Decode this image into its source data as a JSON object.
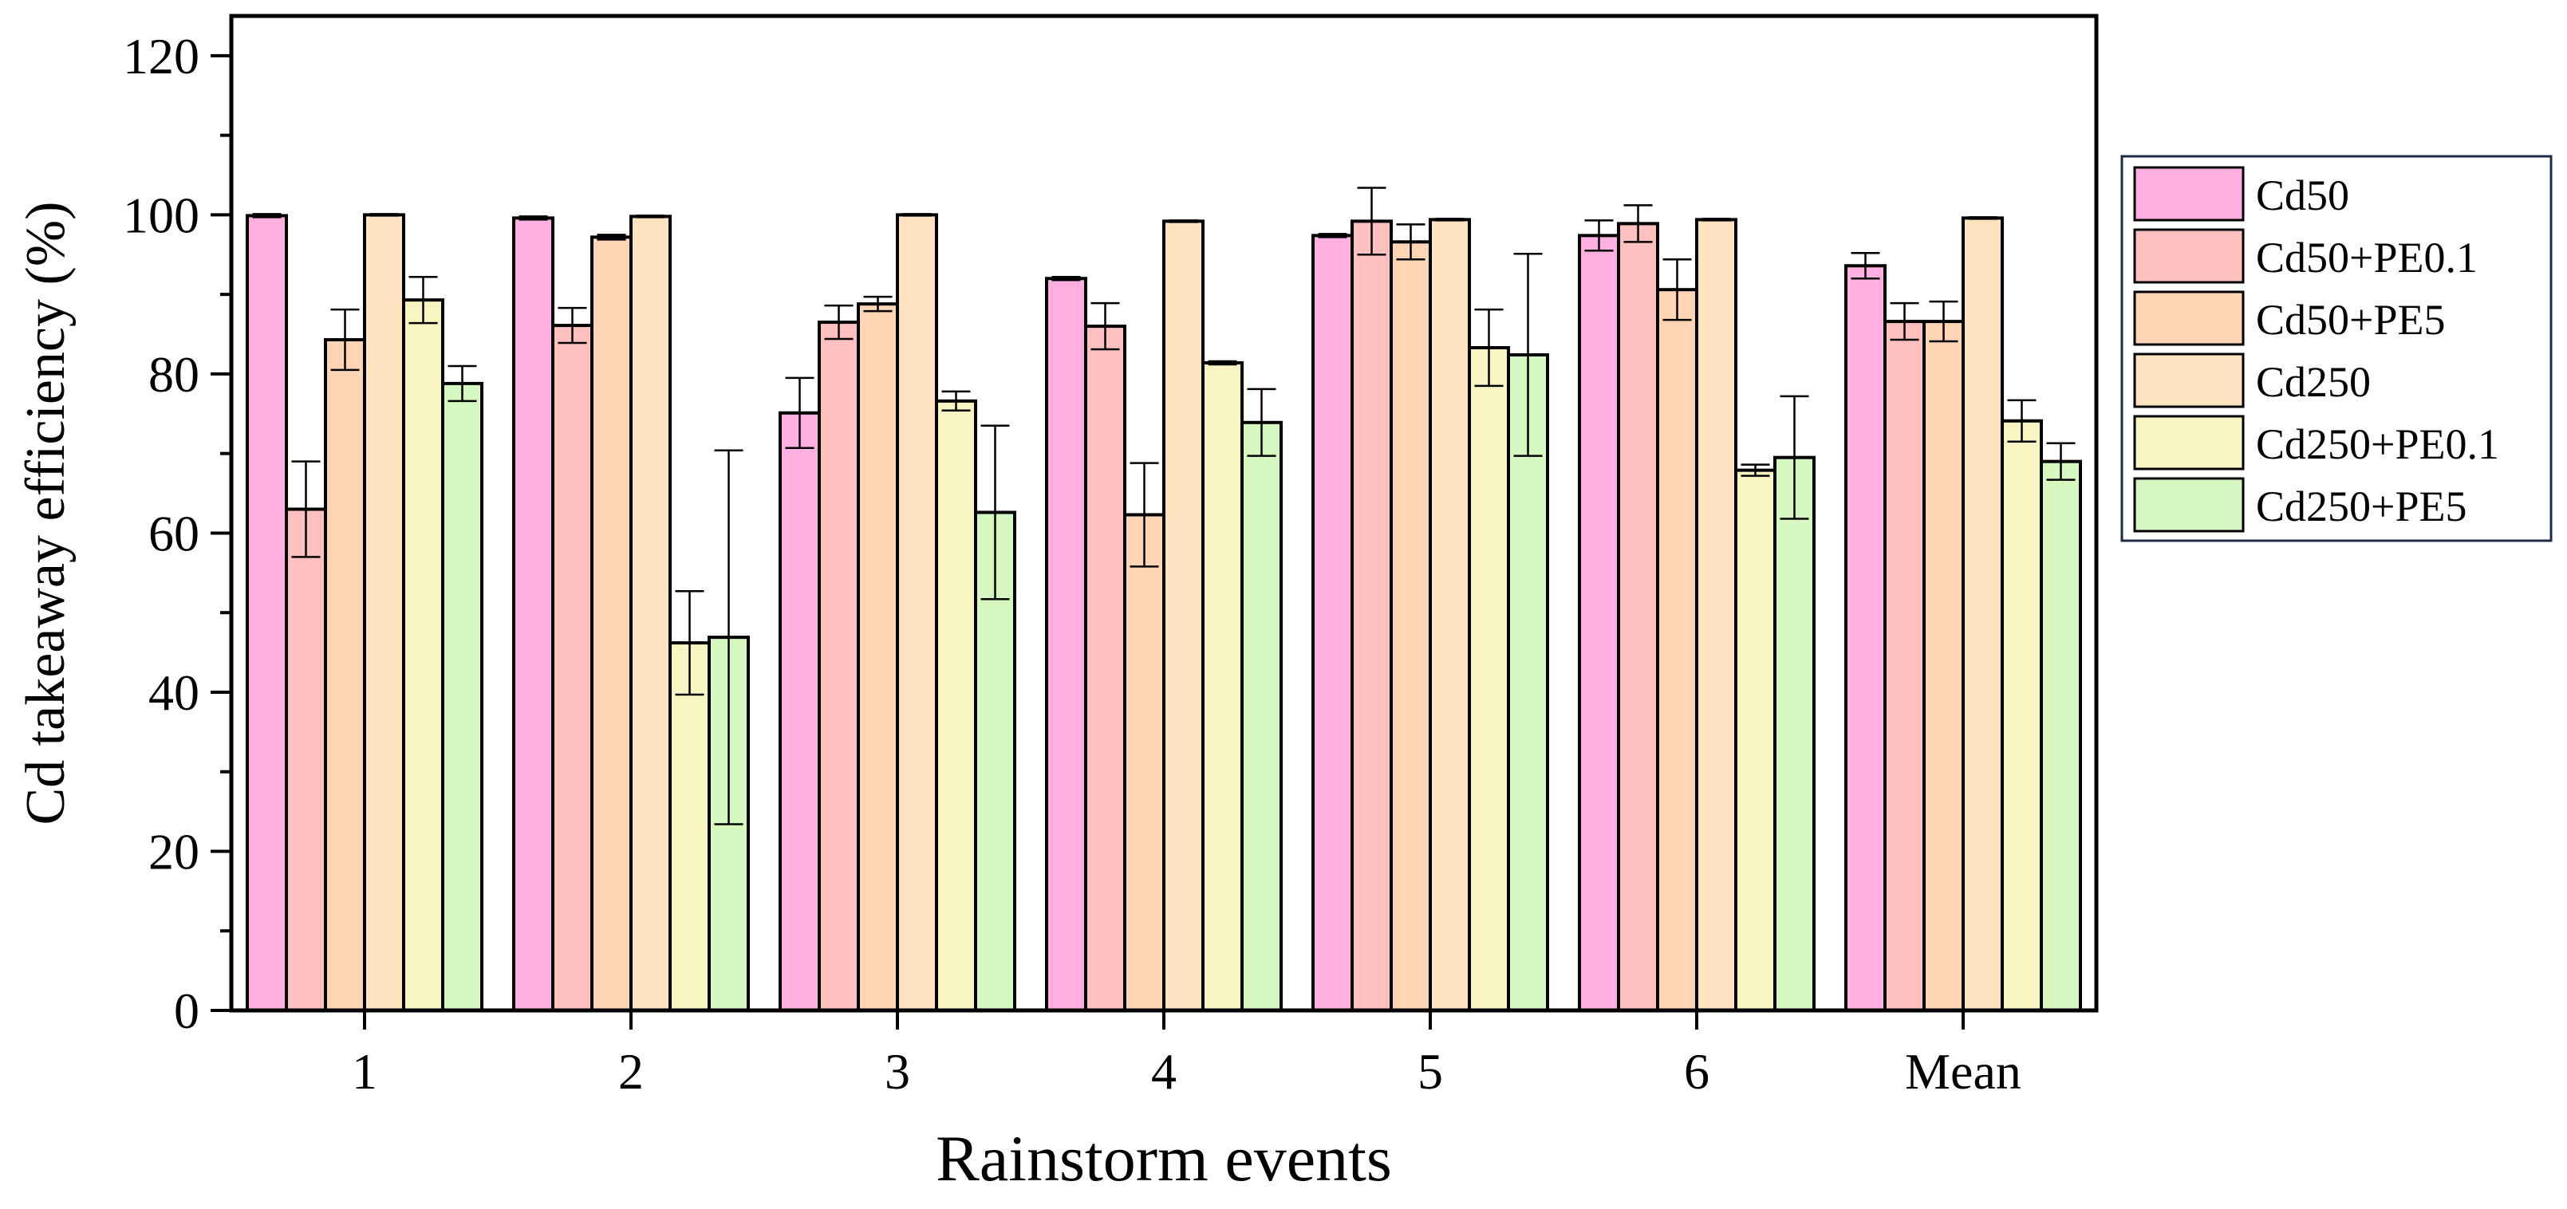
{
  "chart_data": {
    "type": "bar",
    "title": "",
    "xlabel": "Rainstorm events",
    "ylabel": "Cd takeaway efficiency (%)",
    "ylim": [
      0,
      125
    ],
    "yticks": [
      "0",
      "20",
      "40",
      "60",
      "80",
      "100",
      "120"
    ],
    "categories": [
      "1",
      "2",
      "3",
      "4",
      "5",
      "6",
      "Mean"
    ],
    "legend_position": "right",
    "series": [
      {
        "name": "Cd50",
        "color": "#ffb0e0",
        "values": [
          99.9,
          99.6,
          75.1,
          92.0,
          97.4,
          97.4,
          93.6
        ],
        "errors": [
          0.2,
          0.2,
          4.4,
          0.2,
          0.2,
          1.9,
          1.6
        ]
      },
      {
        "name": "Cd50+PE0.1",
        "color": "#ffc0c0",
        "values": [
          63.0,
          86.1,
          86.5,
          86.0,
          99.2,
          98.9,
          86.6
        ],
        "errors": [
          6.0,
          2.2,
          2.1,
          2.9,
          4.2,
          2.3,
          2.3
        ]
      },
      {
        "name": "Cd50+PE5",
        "color": "#ffd5b5",
        "values": [
          84.3,
          97.2,
          88.8,
          62.3,
          96.6,
          90.6,
          86.6
        ],
        "errors": [
          3.8,
          0.3,
          0.9,
          6.5,
          2.2,
          3.8,
          2.5
        ]
      },
      {
        "name": "Cd250",
        "color": "#ffe2bf",
        "values": [
          100.0,
          99.8,
          100.0,
          99.2,
          99.4,
          99.4,
          99.6
        ],
        "errors": [
          0.1,
          0.1,
          0.1,
          0.1,
          0.1,
          0.1,
          0.1
        ]
      },
      {
        "name": "Cd250+PE0.1",
        "color": "#f8f5c3",
        "values": [
          89.3,
          46.2,
          76.6,
          81.4,
          83.3,
          67.9,
          74.1
        ],
        "errors": [
          2.9,
          6.5,
          1.2,
          0.2,
          4.8,
          0.7,
          2.6
        ]
      },
      {
        "name": "Cd250+PE5",
        "color": "#d6f8c0",
        "values": [
          78.8,
          46.9,
          62.6,
          73.9,
          82.4,
          69.5,
          69.0
        ],
        "errors": [
          2.2,
          23.5,
          10.9,
          4.2,
          12.7,
          7.7,
          2.3
        ]
      }
    ]
  }
}
